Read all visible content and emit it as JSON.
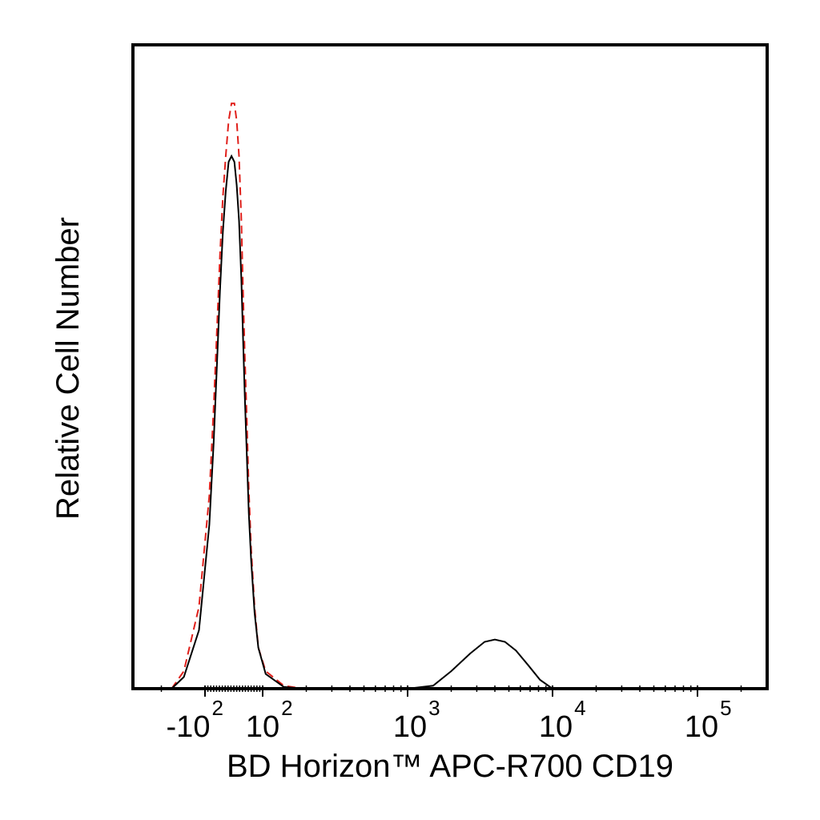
{
  "chart_data": {
    "type": "line",
    "title": "",
    "xlabel": "BD Horizon™ APC-R700 CD19",
    "ylabel": "Relative Cell Number",
    "x_scale": "biexponential",
    "x_ticks": [
      {
        "base": "-10",
        "exp": "2",
        "value": -100
      },
      {
        "base": "10",
        "exp": "2",
        "value": 100
      },
      {
        "base": "10",
        "exp": "3",
        "value": 1000
      },
      {
        "base": "10",
        "exp": "4",
        "value": 10000
      },
      {
        "base": "10",
        "exp": "5",
        "value": 100000
      }
    ],
    "y_ticks": [],
    "xlim": [
      -300,
      250000
    ],
    "ylim": [
      0,
      1.1
    ],
    "grid": false,
    "legend": "none",
    "series": [
      {
        "style": "dashed",
        "color": "#e0201b",
        "points": [
          [
            -170,
            0.0
          ],
          [
            -140,
            0.03
          ],
          [
            -110,
            0.14
          ],
          [
            -85,
            0.33
          ],
          [
            -70,
            0.48
          ],
          [
            -58,
            0.62
          ],
          [
            -48,
            0.74
          ],
          [
            -38,
            0.84
          ],
          [
            -28,
            0.91
          ],
          [
            -18,
            0.97
          ],
          [
            -8,
            1.0
          ],
          [
            2,
            1.0
          ],
          [
            10,
            0.97
          ],
          [
            18,
            0.91
          ],
          [
            26,
            0.8
          ],
          [
            32,
            0.68
          ],
          [
            38,
            0.57
          ],
          [
            45,
            0.46
          ],
          [
            52,
            0.34
          ],
          [
            60,
            0.24
          ],
          [
            72,
            0.14
          ],
          [
            85,
            0.07
          ],
          [
            105,
            0.03
          ],
          [
            140,
            0.005
          ],
          [
            190,
            0.0
          ],
          [
            300,
            0.0
          ],
          [
            700,
            0.0
          ]
        ]
      },
      {
        "style": "solid",
        "color": "#000000",
        "points": [
          [
            -170,
            0.0
          ],
          [
            -140,
            0.02
          ],
          [
            -110,
            0.1
          ],
          [
            -85,
            0.28
          ],
          [
            -70,
            0.42
          ],
          [
            -58,
            0.56
          ],
          [
            -48,
            0.68
          ],
          [
            -38,
            0.78
          ],
          [
            -28,
            0.85
          ],
          [
            -18,
            0.9
          ],
          [
            -8,
            0.91
          ],
          [
            2,
            0.9
          ],
          [
            10,
            0.86
          ],
          [
            18,
            0.8
          ],
          [
            26,
            0.7
          ],
          [
            32,
            0.6
          ],
          [
            38,
            0.5
          ],
          [
            45,
            0.4
          ],
          [
            52,
            0.3
          ],
          [
            60,
            0.22
          ],
          [
            72,
            0.13
          ],
          [
            85,
            0.07
          ],
          [
            105,
            0.025
          ],
          [
            140,
            0.003
          ],
          [
            190,
            0.0
          ],
          [
            1000,
            0.0
          ],
          [
            1500,
            0.005
          ],
          [
            2000,
            0.03
          ],
          [
            2700,
            0.06
          ],
          [
            3400,
            0.08
          ],
          [
            4000,
            0.084
          ],
          [
            4700,
            0.08
          ],
          [
            5600,
            0.065
          ],
          [
            6800,
            0.04
          ],
          [
            8200,
            0.015
          ],
          [
            10000,
            0.0
          ]
        ]
      }
    ]
  }
}
